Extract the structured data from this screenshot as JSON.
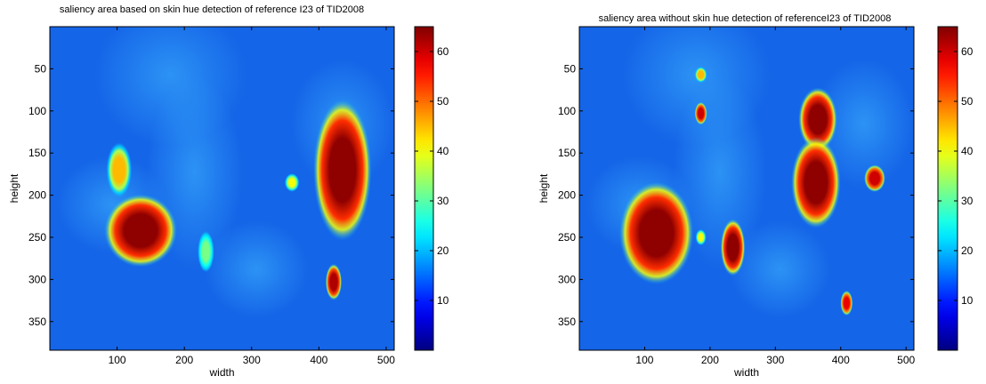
{
  "chart_data": [
    {
      "type": "heatmap",
      "title": "saliency area based on skin hue detection of reference I23 of TID2008",
      "xlabel": "width",
      "ylabel": "height",
      "xlim": [
        0,
        512
      ],
      "ylim": [
        384,
        0
      ],
      "xticks": [
        100,
        200,
        300,
        400,
        500
      ],
      "yticks": [
        50,
        100,
        150,
        200,
        250,
        300,
        350
      ],
      "colorbar": {
        "colormap": "jet",
        "range": [
          0,
          65
        ],
        "ticks": [
          10,
          20,
          30,
          40,
          50,
          60
        ]
      },
      "colors": {
        "background": "#1565e8",
        "hot": "#800000"
      },
      "regions": [
        {
          "label": "hot-blob",
          "cx": 135,
          "cy": 242,
          "rx": 40,
          "ry": 32,
          "level": 64
        },
        {
          "label": "hot-blob",
          "cx": 435,
          "cy": 170,
          "rx": 32,
          "ry": 62,
          "level": 64
        },
        {
          "label": "hot-blob",
          "cx": 422,
          "cy": 303,
          "rx": 9,
          "ry": 16,
          "level": 62
        },
        {
          "label": "warm-spot",
          "cx": 103,
          "cy": 170,
          "rx": 14,
          "ry": 24,
          "level": 45
        },
        {
          "label": "warm-spot",
          "cx": 360,
          "cy": 185,
          "rx": 8,
          "ry": 8,
          "level": 40
        },
        {
          "label": "warm-spot",
          "cx": 232,
          "cy": 267,
          "rx": 9,
          "ry": 18,
          "level": 32
        }
      ]
    },
    {
      "type": "heatmap",
      "title": "saliency area without skin hue detection of referenceI23 of TID2008",
      "xlabel": "width",
      "ylabel": "height",
      "xlim": [
        0,
        512
      ],
      "ylim": [
        384,
        0
      ],
      "xticks": [
        100,
        200,
        300,
        400,
        500
      ],
      "yticks": [
        50,
        100,
        150,
        200,
        250,
        300,
        350
      ],
      "colorbar": {
        "colormap": "jet",
        "range": [
          0,
          65
        ],
        "ticks": [
          10,
          20,
          30,
          40,
          50,
          60
        ]
      },
      "colors": {
        "background": "#1565e8",
        "hot": "#800000"
      },
      "regions": [
        {
          "label": "hot-blob",
          "cx": 118,
          "cy": 245,
          "rx": 42,
          "ry": 45,
          "level": 64
        },
        {
          "label": "hot-blob",
          "cx": 365,
          "cy": 110,
          "rx": 22,
          "ry": 28,
          "level": 64
        },
        {
          "label": "hot-blob",
          "cx": 362,
          "cy": 185,
          "rx": 28,
          "ry": 40,
          "level": 64
        },
        {
          "label": "hot-blob",
          "cx": 235,
          "cy": 262,
          "rx": 14,
          "ry": 25,
          "level": 64
        },
        {
          "label": "hot-blob",
          "cx": 452,
          "cy": 180,
          "rx": 12,
          "ry": 12,
          "level": 60
        },
        {
          "label": "hot-blob",
          "cx": 186,
          "cy": 103,
          "rx": 7,
          "ry": 10,
          "level": 60
        },
        {
          "label": "warm-spot",
          "cx": 186,
          "cy": 57,
          "rx": 7,
          "ry": 7,
          "level": 45
        },
        {
          "label": "warm-spot",
          "cx": 186,
          "cy": 250,
          "rx": 6,
          "ry": 7,
          "level": 40
        },
        {
          "label": "hot-blob",
          "cx": 409,
          "cy": 328,
          "rx": 7,
          "ry": 11,
          "level": 58
        }
      ]
    }
  ]
}
